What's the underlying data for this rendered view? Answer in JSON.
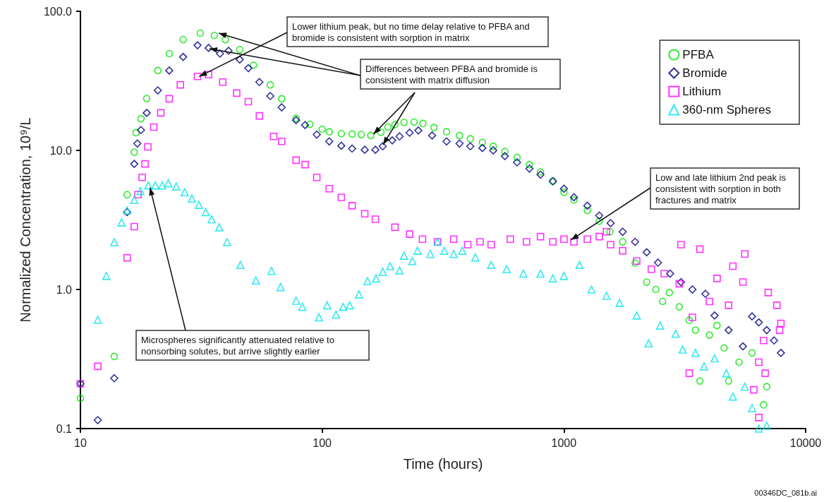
{
  "chart_data": {
    "type": "scatter",
    "xlabel": "Time (hours)",
    "ylabel": "Normalized Concentration, 10⁹/L",
    "log": "xy",
    "xlim": [
      10,
      10000
    ],
    "xticks": [
      10,
      100,
      1000,
      10000
    ],
    "ylim": [
      0.1,
      100
    ],
    "yticks": [
      {
        "value": 0.1,
        "label": "0.1"
      },
      {
        "value": 1,
        "label": "1.0"
      },
      {
        "value": 10,
        "label": "10.0"
      },
      {
        "value": 100,
        "label": "100.0"
      }
    ],
    "grid": false,
    "legend": "top right",
    "series": [
      {
        "name": "PFBA",
        "color": "#00e600",
        "marker": "circle",
        "x": [
          10,
          13.8,
          15.6,
          16.7,
          17,
          17.8,
          18.8,
          20.9,
          23.3,
          26.6,
          31.3,
          35.8,
          39.8,
          45.6,
          52,
          61,
          68,
          78,
          89,
          100,
          107,
          120,
          133,
          145,
          159,
          175,
          187,
          200,
          218,
          240,
          261,
          290,
          327,
          370,
          410,
          460,
          510,
          570,
          640,
          720,
          800,
          900,
          1000,
          1100,
          1250,
          1400,
          1550,
          1750,
          1970,
          2200,
          2400,
          2560,
          2730,
          3000,
          3300,
          3500,
          3650,
          4000,
          4300,
          4600,
          4800,
          5300,
          6000,
          6700,
          6900
        ],
        "values": [
          0.165,
          0.33,
          4.8,
          9.7,
          13.4,
          16.9,
          23.6,
          37.5,
          49.6,
          62.6,
          69.6,
          67,
          62.6,
          53,
          41,
          29.6,
          23.5,
          17,
          15.4,
          14.2,
          13.6,
          13.2,
          13.1,
          13,
          12.8,
          13.5,
          14.7,
          15.3,
          15.9,
          16,
          15.6,
          14.6,
          13.6,
          12.8,
          12.1,
          11.4,
          10.7,
          9.8,
          8.9,
          7.9,
          7.0,
          6.0,
          5.0,
          4.4,
          3.7,
          3.1,
          2.6,
          2.2,
          1.55,
          1.13,
          1.0,
          0.82,
          0.95,
          0.75,
          0.6,
          0.51,
          0.22,
          0.47,
          0.55,
          0.38,
          0.22,
          0.3,
          0.35,
          0.148,
          0.2
        ]
      },
      {
        "name": "Bromide",
        "color": "#000080",
        "marker": "diamond",
        "x": [
          10,
          11.8,
          13.8,
          15.6,
          16.7,
          17.2,
          17.8,
          18.8,
          20.9,
          23.3,
          26.6,
          30.5,
          33.9,
          37.8,
          41,
          45.6,
          49.5,
          55,
          61,
          68,
          78,
          85,
          95,
          107,
          120,
          133,
          150,
          166,
          178,
          195,
          209,
          230,
          250,
          285,
          327,
          370,
          410,
          460,
          510,
          570,
          640,
          720,
          800,
          900,
          1000,
          1100,
          1250,
          1400,
          1560,
          1750,
          1970,
          2200,
          2450,
          2750,
          3050,
          3400,
          3850,
          4200,
          4800,
          5500,
          6000,
          6400,
          6900,
          7400,
          7900
        ],
        "values": [
          0.21,
          0.115,
          0.23,
          3.6,
          8.0,
          11.2,
          14.0,
          18.6,
          27,
          37.5,
          47,
          57,
          54.5,
          49.6,
          52,
          45,
          39,
          31,
          24.6,
          20.4,
          16.5,
          15.2,
          13,
          11.6,
          10.8,
          10.3,
          10.1,
          10.1,
          10.7,
          11.8,
          12.6,
          13.4,
          13.9,
          12.8,
          11.6,
          11.2,
          10.7,
          10.4,
          10.0,
          9.1,
          8.2,
          7.4,
          6.7,
          6.0,
          5.3,
          4.6,
          4.0,
          3.4,
          3.0,
          2.6,
          2.2,
          1.85,
          1.56,
          1.3,
          1.13,
          1.0,
          0.93,
          0.65,
          0.51,
          0.39,
          0.64,
          0.58,
          0.51,
          0.43,
          0.35
        ]
      },
      {
        "name": "Lithium",
        "color": "#ff00ff",
        "marker": "square",
        "x": [
          10,
          11.8,
          15.6,
          16.7,
          17.3,
          18,
          18.5,
          19,
          20.1,
          21.5,
          23.3,
          25.9,
          30.5,
          33.9,
          38.8,
          44.3,
          49.5,
          55,
          63,
          68,
          78,
          85,
          95,
          107,
          120,
          133,
          150,
          166,
          200,
          230,
          260,
          300,
          350,
          400,
          450,
          500,
          600,
          700,
          800,
          900,
          1000,
          1100,
          1250,
          1400,
          1500,
          1560,
          1750,
          2000,
          2300,
          2600,
          3000,
          3050,
          3300,
          3400,
          3650,
          4000,
          4300,
          4800,
          5000,
          5500,
          5600,
          6100,
          6400,
          6400,
          6700,
          6800,
          7000,
          7600,
          7800,
          7900
        ],
        "values": [
          0.21,
          0.28,
          1.69,
          2.83,
          4.8,
          6.4,
          8.0,
          10.6,
          14.7,
          18.6,
          23.5,
          29.6,
          34,
          35,
          31,
          25.8,
          22.4,
          17.7,
          12.6,
          11.6,
          8.5,
          7.9,
          6.4,
          5.3,
          4.6,
          4.0,
          3.5,
          3.2,
          2.8,
          2.5,
          2.3,
          2.2,
          2.3,
          2.1,
          2.2,
          2.1,
          2.3,
          2.2,
          2.4,
          2.2,
          2.3,
          2.2,
          2.3,
          2.4,
          2.6,
          2.1,
          1.9,
          1.6,
          1.4,
          1.3,
          1.1,
          2.1,
          0.25,
          0.63,
          1.95,
          0.82,
          1.2,
          0.77,
          1.47,
          1.13,
          1.8,
          0.19,
          0.12,
          0.3,
          0.43,
          0.25,
          0.95,
          0.77,
          0.51,
          0.57
        ]
      },
      {
        "name": "360-nm Spheres",
        "color": "#00e5ee",
        "marker": "triangle",
        "x": [
          11.8,
          12.8,
          13.8,
          14.8,
          15.6,
          16.7,
          17.7,
          19.1,
          20.4,
          21.8,
          23.1,
          24.9,
          27,
          28.9,
          30.9,
          33,
          34.9,
          37.5,
          40.4,
          45.9,
          53.2,
          61.7,
          67.3,
          78,
          82.8,
          97,
          104.8,
          114,
          122,
          130,
          142,
          154,
          167,
          178,
          191,
          209,
          218,
          236,
          248,
          280,
          300,
          320,
          350,
          380,
          430,
          500,
          580,
          680,
          800,
          900,
          1000,
          1160,
          1300,
          1500,
          1700,
          2000,
          2240,
          2500,
          2900,
          3100,
          3500,
          3800,
          4200,
          4700,
          5000,
          5600,
          6000,
          6400,
          6900
        ],
        "values": [
          0.605,
          1.25,
          2.19,
          3.03,
          3.7,
          4.4,
          5.1,
          5.6,
          5.6,
          5.6,
          5.8,
          5.5,
          5.0,
          4.5,
          4.06,
          3.6,
          3.2,
          2.8,
          2.19,
          1.5,
          1.16,
          1.36,
          1.04,
          0.83,
          0.75,
          0.63,
          0.77,
          0.66,
          0.75,
          0.77,
          0.92,
          1.15,
          1.2,
          1.34,
          1.47,
          1.37,
          1.75,
          1.6,
          1.9,
          1.8,
          2.2,
          1.9,
          1.8,
          1.9,
          1.7,
          1.5,
          1.4,
          1.3,
          1.3,
          1.2,
          1.25,
          1.5,
          1.0,
          0.9,
          0.8,
          0.65,
          0.41,
          0.55,
          0.48,
          0.37,
          0.35,
          0.28,
          0.32,
          0.25,
          0.17,
          0.2,
          0.14,
          0.1,
          0.105
        ]
      }
    ],
    "annotations": [
      {
        "text": "Lower lithium peak, but no time delay relative to PFBA and bromide is consistent with sorption in matrix",
        "x": 31,
        "y": 34
      },
      {
        "text": "Differences between PFBA and bromide is consistent with matrix diffusion",
        "x": 163,
        "y": 13.1
      },
      {
        "text": "Low and late lithium 2nd peak is consistent with sorption in both fractures and matrix",
        "x": 1070,
        "y": 2.27
      },
      {
        "text": "Microspheres significantly attenuated relative to nonsorbing solutes, but arrive slightly earlier",
        "x": 19.4,
        "y": 5.4
      },
      "00346DC_081b.ai"
    ]
  }
}
